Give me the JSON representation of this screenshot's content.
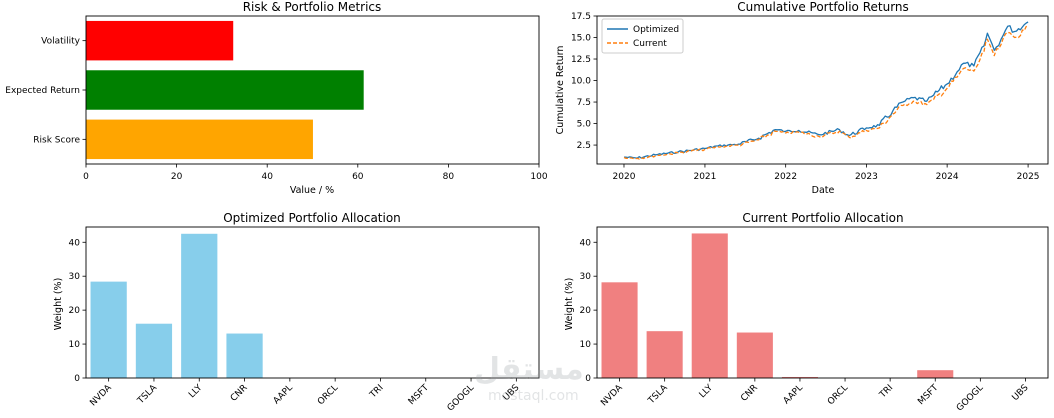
{
  "chart_data": [
    {
      "type": "bar",
      "orientation": "horizontal",
      "title": "Risk & Portfolio Metrics",
      "xlabel": "Value / %",
      "ylabel": "",
      "categories": [
        "Volatility",
        "Expected Return",
        "Risk Score"
      ],
      "values": [
        32.5,
        61.3,
        50.1
      ],
      "colors": [
        "#ff0000",
        "#008000",
        "#ffa500"
      ],
      "xlim": [
        0,
        100
      ],
      "xticks": [
        0,
        20,
        40,
        60,
        80,
        100
      ],
      "grid": false
    },
    {
      "type": "line",
      "title": "Cumulative Portfolio Returns",
      "xlabel": "Date",
      "ylabel": "Cumulative Return",
      "xlim": [
        "2019-09-01",
        "2025-04-01"
      ],
      "ylim": [
        0.3,
        17.5
      ],
      "xticks": [
        "2020",
        "2021",
        "2022",
        "2023",
        "2024",
        "2025"
      ],
      "yticks": [
        "2.5",
        "5.0",
        "7.5",
        "10.0",
        "12.5",
        "15.0",
        "17.5"
      ],
      "legend": "top-left",
      "grid": false,
      "series": [
        {
          "name": "Optimized",
          "color": "#1f77b4",
          "style": "solid",
          "x": [
            "2020-01-01",
            "2020-03-01",
            "2020-06-01",
            "2020-09-01",
            "2021-01-01",
            "2021-03-01",
            "2021-06-01",
            "2021-09-01",
            "2021-11-15",
            "2022-01-01",
            "2022-03-01",
            "2022-06-01",
            "2022-09-01",
            "2022-10-15",
            "2023-01-01",
            "2023-03-01",
            "2023-05-01",
            "2023-06-15",
            "2023-08-01",
            "2023-10-01",
            "2023-11-01",
            "2024-01-01",
            "2024-02-15",
            "2024-03-15",
            "2024-05-01",
            "2024-06-15",
            "2024-07-01",
            "2024-08-01",
            "2024-09-01",
            "2024-10-01",
            "2024-11-01",
            "2024-12-15",
            "2025-01-01"
          ],
          "values": [
            1.1,
            1.0,
            1.4,
            1.7,
            2.1,
            2.4,
            2.6,
            3.3,
            4.3,
            4.1,
            4.2,
            3.7,
            4.3,
            3.6,
            4.5,
            4.8,
            6.5,
            7.5,
            8.0,
            7.6,
            8.3,
            9.6,
            11.0,
            12.0,
            11.7,
            14.0,
            15.5,
            13.5,
            14.8,
            16.3,
            15.7,
            16.5,
            16.8
          ]
        },
        {
          "name": "Current",
          "color": "#ff7f0e",
          "style": "dashed",
          "x": [
            "2020-01-01",
            "2020-03-01",
            "2020-06-01",
            "2020-09-01",
            "2021-01-01",
            "2021-03-01",
            "2021-06-01",
            "2021-09-01",
            "2021-11-15",
            "2022-01-01",
            "2022-03-01",
            "2022-06-01",
            "2022-09-01",
            "2022-10-15",
            "2023-01-01",
            "2023-03-01",
            "2023-05-01",
            "2023-06-15",
            "2023-08-01",
            "2023-10-01",
            "2023-11-01",
            "2024-01-01",
            "2024-02-15",
            "2024-03-15",
            "2024-05-01",
            "2024-06-15",
            "2024-07-01",
            "2024-08-01",
            "2024-09-01",
            "2024-10-01",
            "2024-11-01",
            "2024-12-15",
            "2025-01-01"
          ],
          "values": [
            1.05,
            0.95,
            1.3,
            1.6,
            2.0,
            2.3,
            2.5,
            3.1,
            4.1,
            3.9,
            4.0,
            3.5,
            4.1,
            3.4,
            4.2,
            4.5,
            6.1,
            7.1,
            7.6,
            7.2,
            7.8,
            9.1,
            10.4,
            11.4,
            11.1,
            13.3,
            14.8,
            12.9,
            14.2,
            15.6,
            15.0,
            15.8,
            16.1
          ]
        }
      ]
    },
    {
      "type": "bar",
      "title": "Optimized Portfolio Allocation",
      "xlabel": "",
      "ylabel": "Weight (%)",
      "categories": [
        "NVDA",
        "TSLA",
        "LLY",
        "CNR",
        "AAPL",
        "ORCL",
        "TRI",
        "MSFT",
        "GOOGL",
        "UBS"
      ],
      "values": [
        28.4,
        16.0,
        42.5,
        13.1,
        0,
        0,
        0,
        0,
        0,
        0
      ],
      "color": "#87ceeb",
      "ylim": [
        0,
        44.5
      ],
      "yticks": [
        0,
        10,
        20,
        30,
        40
      ],
      "grid": false
    },
    {
      "type": "bar",
      "title": "Current Portfolio Allocation",
      "xlabel": "",
      "ylabel": "Weight (%)",
      "categories": [
        "NVDA",
        "TSLA",
        "LLY",
        "CNR",
        "AAPL",
        "ORCL",
        "TRI",
        "MSFT",
        "GOOGL",
        "UBS"
      ],
      "values": [
        28.2,
        13.8,
        42.6,
        13.4,
        0.3,
        0,
        0,
        2.3,
        0,
        0
      ],
      "color": "#f08080",
      "ylim": [
        0,
        44.5
      ],
      "yticks": [
        0,
        10,
        20,
        30,
        40
      ],
      "grid": false
    }
  ],
  "watermark": {
    "logo": "مستقل",
    "text": "mostaql.com"
  }
}
